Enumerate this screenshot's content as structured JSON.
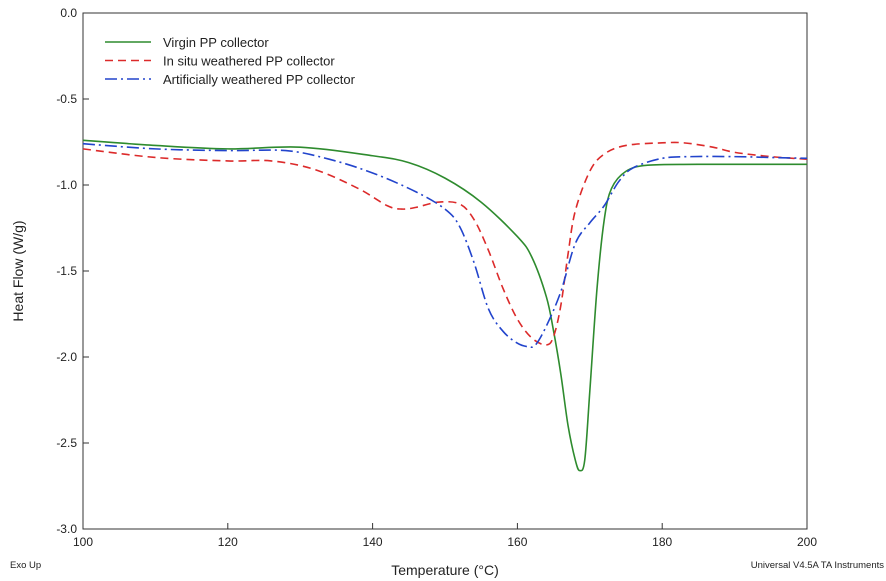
{
  "chart_data": {
    "type": "line",
    "xlabel": "Temperature (°C)",
    "ylabel": "Heat Flow (W/g)",
    "xlim": [
      100,
      200
    ],
    "ylim": [
      -3.0,
      0.0
    ],
    "x_ticks": [
      100,
      120,
      140,
      160,
      180,
      200
    ],
    "x_tick_labels": [
      "100",
      "120",
      "140",
      "160",
      "180",
      "200"
    ],
    "y_ticks": [
      0.0,
      -0.5,
      -1.0,
      -1.5,
      -2.0,
      -2.5,
      -3.0
    ],
    "y_tick_labels": [
      "0.0",
      "-0.5",
      "-1.0",
      "-1.5",
      "-2.0",
      "-2.5",
      "-3.0"
    ],
    "grid": false,
    "legend_position": "top-left",
    "annotations": {
      "bottom_left": "Exo Up",
      "bottom_right": "Universal V4.5A TA Instruments"
    },
    "series": [
      {
        "name": "Virgin PP collector",
        "color": "#2e8b2e",
        "line_style": "solid",
        "points": [
          [
            100,
            -0.74
          ],
          [
            110,
            -0.77
          ],
          [
            120,
            -0.79
          ],
          [
            130,
            -0.78
          ],
          [
            140,
            -0.83
          ],
          [
            145,
            -0.87
          ],
          [
            150,
            -0.96
          ],
          [
            155,
            -1.1
          ],
          [
            160,
            -1.3
          ],
          [
            162,
            -1.42
          ],
          [
            164,
            -1.65
          ],
          [
            165,
            -1.85
          ],
          [
            166,
            -2.1
          ],
          [
            167,
            -2.4
          ],
          [
            168,
            -2.6
          ],
          [
            168.6,
            -2.66
          ],
          [
            169.3,
            -2.6
          ],
          [
            170,
            -2.2
          ],
          [
            171,
            -1.6
          ],
          [
            172,
            -1.2
          ],
          [
            173,
            -1.02
          ],
          [
            175,
            -0.92
          ],
          [
            178,
            -0.885
          ],
          [
            185,
            -0.88
          ],
          [
            200,
            -0.88
          ]
        ]
      },
      {
        "name": "In situ weathered PP collector",
        "color": "#dc2a2a",
        "line_style": "dashed",
        "points": [
          [
            100,
            -0.79
          ],
          [
            110,
            -0.84
          ],
          [
            120,
            -0.86
          ],
          [
            126,
            -0.86
          ],
          [
            132,
            -0.91
          ],
          [
            138,
            -1.02
          ],
          [
            142,
            -1.12
          ],
          [
            144,
            -1.14
          ],
          [
            146,
            -1.13
          ],
          [
            149,
            -1.1
          ],
          [
            152,
            -1.11
          ],
          [
            154,
            -1.2
          ],
          [
            156,
            -1.38
          ],
          [
            158,
            -1.6
          ],
          [
            160,
            -1.78
          ],
          [
            162,
            -1.89
          ],
          [
            164,
            -1.93
          ],
          [
            165,
            -1.88
          ],
          [
            166,
            -1.7
          ],
          [
            167,
            -1.4
          ],
          [
            168,
            -1.15
          ],
          [
            170,
            -0.92
          ],
          [
            172,
            -0.82
          ],
          [
            175,
            -0.77
          ],
          [
            180,
            -0.755
          ],
          [
            183,
            -0.755
          ],
          [
            187,
            -0.78
          ],
          [
            190,
            -0.81
          ],
          [
            195,
            -0.835
          ],
          [
            200,
            -0.85
          ]
        ]
      },
      {
        "name": "Artificially weathered PP collector",
        "color": "#2244cc",
        "line_style": "dashdot",
        "points": [
          [
            100,
            -0.76
          ],
          [
            110,
            -0.79
          ],
          [
            120,
            -0.8
          ],
          [
            128,
            -0.8
          ],
          [
            134,
            -0.85
          ],
          [
            140,
            -0.93
          ],
          [
            146,
            -1.04
          ],
          [
            150,
            -1.14
          ],
          [
            152,
            -1.24
          ],
          [
            154,
            -1.45
          ],
          [
            156,
            -1.72
          ],
          [
            158,
            -1.85
          ],
          [
            160,
            -1.92
          ],
          [
            161.5,
            -1.94
          ],
          [
            162.5,
            -1.93
          ],
          [
            164,
            -1.82
          ],
          [
            166,
            -1.62
          ],
          [
            168,
            -1.34
          ],
          [
            170,
            -1.22
          ],
          [
            172,
            -1.12
          ],
          [
            174,
            -0.98
          ],
          [
            176,
            -0.9
          ],
          [
            180,
            -0.845
          ],
          [
            184,
            -0.835
          ],
          [
            190,
            -0.835
          ],
          [
            195,
            -0.84
          ],
          [
            200,
            -0.845
          ]
        ]
      }
    ]
  }
}
